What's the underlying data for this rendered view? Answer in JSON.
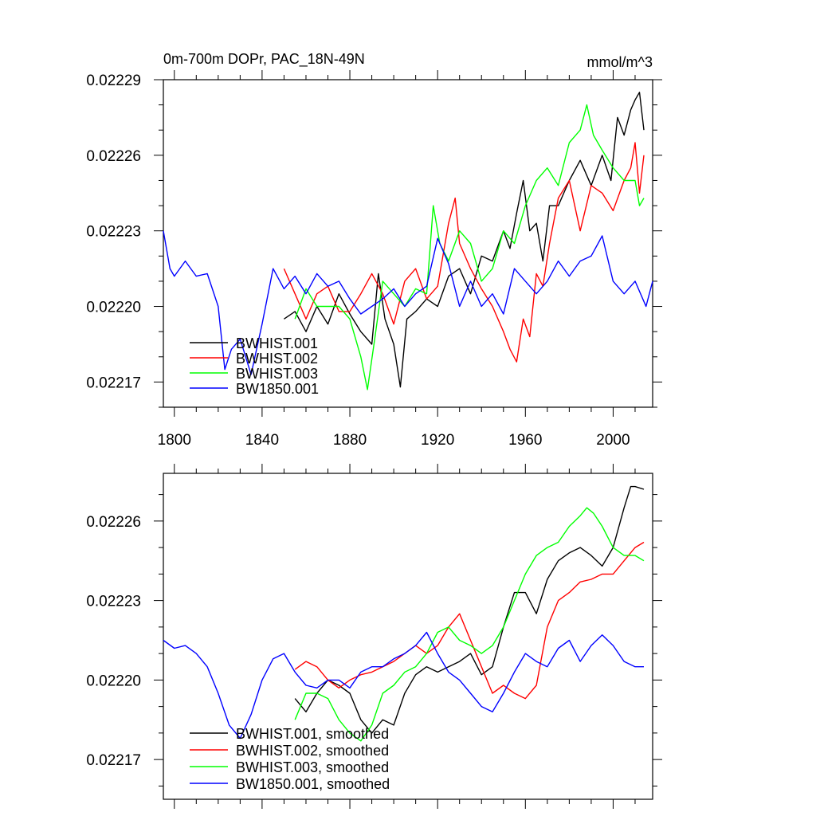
{
  "chart_data": [
    {
      "type": "line",
      "title": "0m-700m DOPr, PAC_18N-49N",
      "units": "mmol/m^3",
      "xlabel": "",
      "ylabel": "",
      "xlim": [
        1795,
        2018
      ],
      "ylim": [
        0.02216,
        0.02229
      ],
      "xticks": [
        1800,
        1840,
        1880,
        1920,
        1960,
        2000
      ],
      "xtick_labels": [
        "1800",
        "1840",
        "1880",
        "1920",
        "1960",
        "2000"
      ],
      "yticks": [
        0.02217,
        0.0222,
        0.02223,
        0.02226,
        0.02229
      ],
      "ytick_labels": [
        "0.02217",
        "0.02220",
        "0.02223",
        "0.02226",
        "0.02229"
      ],
      "legend_position": "bottom-left",
      "series": [
        {
          "name": "BWHIST.001",
          "color": "#000000",
          "x": [
            1850,
            1855,
            1860,
            1865,
            1870,
            1875,
            1880,
            1885,
            1890,
            1893,
            1896,
            1900,
            1903,
            1906,
            1910,
            1915,
            1920,
            1925,
            1930,
            1935,
            1940,
            1945,
            1950,
            1953,
            1956,
            1959,
            1962,
            1965,
            1968,
            1971,
            1975,
            1980,
            1985,
            1990,
            1995,
            1999,
            2002,
            2005,
            2008,
            2010,
            2012,
            2014
          ],
          "y": [
            0.022195,
            0.022198,
            0.02219,
            0.0222,
            0.022193,
            0.022205,
            0.022197,
            0.02219,
            0.022185,
            0.022213,
            0.022195,
            0.022185,
            0.022168,
            0.022195,
            0.022198,
            0.022203,
            0.0222,
            0.022212,
            0.022215,
            0.022205,
            0.02222,
            0.022218,
            0.02223,
            0.022223,
            0.022237,
            0.02225,
            0.02223,
            0.022233,
            0.022218,
            0.02224,
            0.02224,
            0.02225,
            0.022258,
            0.022248,
            0.02226,
            0.02225,
            0.022275,
            0.022268,
            0.022278,
            0.022282,
            0.022285,
            0.02227
          ]
        },
        {
          "name": "BWHIST.002",
          "color": "#ff0000",
          "x": [
            1850,
            1855,
            1860,
            1865,
            1870,
            1875,
            1880,
            1885,
            1890,
            1895,
            1900,
            1905,
            1910,
            1915,
            1920,
            1925,
            1928,
            1930,
            1935,
            1940,
            1945,
            1950,
            1953,
            1956,
            1959,
            1962,
            1965,
            1968,
            1971,
            1975,
            1980,
            1985,
            1990,
            1995,
            2000,
            2005,
            2008,
            2010,
            2012,
            2014
          ],
          "y": [
            0.022215,
            0.022205,
            0.022195,
            0.022205,
            0.022208,
            0.022198,
            0.022198,
            0.022205,
            0.022213,
            0.022205,
            0.022193,
            0.02221,
            0.022215,
            0.022203,
            0.022208,
            0.022233,
            0.022243,
            0.022225,
            0.022215,
            0.022207,
            0.0222,
            0.02219,
            0.022183,
            0.022178,
            0.022195,
            0.022188,
            0.022213,
            0.022208,
            0.022225,
            0.022243,
            0.02225,
            0.02223,
            0.022248,
            0.022245,
            0.022238,
            0.02225,
            0.022255,
            0.022265,
            0.022245,
            0.02226
          ]
        },
        {
          "name": "BWHIST.003",
          "color": "#00ff00",
          "x": [
            1855,
            1860,
            1865,
            1870,
            1875,
            1880,
            1885,
            1888,
            1891,
            1895,
            1900,
            1905,
            1910,
            1915,
            1918,
            1921,
            1925,
            1930,
            1935,
            1940,
            1945,
            1950,
            1955,
            1960,
            1965,
            1970,
            1975,
            1980,
            1985,
            1988,
            1991,
            1995,
            2000,
            2005,
            2010,
            2012,
            2014
          ],
          "y": [
            0.022195,
            0.022207,
            0.0222,
            0.0222,
            0.0222,
            0.022195,
            0.02218,
            0.022167,
            0.022185,
            0.02221,
            0.022205,
            0.0222,
            0.022207,
            0.022205,
            0.02224,
            0.022225,
            0.022218,
            0.02223,
            0.022225,
            0.02221,
            0.022215,
            0.02223,
            0.022225,
            0.02224,
            0.02225,
            0.022255,
            0.022248,
            0.022265,
            0.02227,
            0.02228,
            0.022268,
            0.022262,
            0.022255,
            0.02225,
            0.02225,
            0.02224,
            0.022243
          ]
        },
        {
          "name": "BW1850.001",
          "color": "#0000ff",
          "x": [
            1795,
            1798,
            1800,
            1805,
            1810,
            1815,
            1820,
            1823,
            1826,
            1830,
            1835,
            1840,
            1845,
            1850,
            1855,
            1860,
            1865,
            1870,
            1875,
            1880,
            1885,
            1890,
            1895,
            1900,
            1905,
            1910,
            1915,
            1920,
            1925,
            1930,
            1935,
            1940,
            1945,
            1950,
            1955,
            1960,
            1965,
            1970,
            1975,
            1980,
            1985,
            1990,
            1995,
            2000,
            2005,
            2010,
            2015,
            2018
          ],
          "y": [
            0.02223,
            0.022215,
            0.022212,
            0.022218,
            0.022212,
            0.022213,
            0.0222,
            0.022175,
            0.022183,
            0.022187,
            0.022173,
            0.022193,
            0.022215,
            0.022207,
            0.022212,
            0.022205,
            0.022213,
            0.022208,
            0.02221,
            0.022203,
            0.022197,
            0.0222,
            0.022203,
            0.022207,
            0.0222,
            0.022205,
            0.022208,
            0.022227,
            0.022217,
            0.0222,
            0.02221,
            0.0222,
            0.022205,
            0.022197,
            0.022215,
            0.02221,
            0.022205,
            0.02221,
            0.022218,
            0.022212,
            0.022218,
            0.02222,
            0.022228,
            0.02221,
            0.022205,
            0.02221,
            0.0222,
            0.02221
          ]
        }
      ]
    },
    {
      "type": "line",
      "title": "",
      "xlabel": "",
      "ylabel": "",
      "xlim": [
        1795,
        2018
      ],
      "ylim": [
        0.022155,
        0.022278
      ],
      "xticks": [
        1800,
        1840,
        1880,
        1920,
        1960,
        2000
      ],
      "yticks": [
        0.02217,
        0.0222,
        0.02223,
        0.02226
      ],
      "ytick_labels": [
        "0.02217",
        "0.02220",
        "0.02223",
        "0.02226"
      ],
      "legend_position": "bottom-left",
      "series": [
        {
          "name": "BWHIST.001, smoothed",
          "color": "#000000",
          "x": [
            1855,
            1860,
            1865,
            1870,
            1875,
            1880,
            1885,
            1890,
            1895,
            1900,
            1905,
            1910,
            1915,
            1920,
            1925,
            1930,
            1935,
            1940,
            1945,
            1950,
            1955,
            1960,
            1965,
            1970,
            1975,
            1980,
            1985,
            1990,
            1995,
            2000,
            2005,
            2008,
            2010,
            2014
          ],
          "y": [
            0.022193,
            0.022188,
            0.022195,
            0.0222,
            0.022198,
            0.022195,
            0.022185,
            0.02218,
            0.022185,
            0.022183,
            0.022195,
            0.022202,
            0.022205,
            0.022203,
            0.022205,
            0.022207,
            0.02221,
            0.022202,
            0.022205,
            0.02222,
            0.022233,
            0.022233,
            0.022225,
            0.022238,
            0.022245,
            0.022248,
            0.02225,
            0.022247,
            0.022243,
            0.02225,
            0.022265,
            0.022273,
            0.022273,
            0.022272
          ]
        },
        {
          "name": "BWHIST.002, smoothed",
          "color": "#ff0000",
          "x": [
            1855,
            1860,
            1865,
            1870,
            1875,
            1880,
            1885,
            1890,
            1895,
            1900,
            1905,
            1910,
            1915,
            1920,
            1925,
            1930,
            1935,
            1940,
            1945,
            1950,
            1955,
            1960,
            1965,
            1970,
            1975,
            1980,
            1985,
            1990,
            1995,
            2000,
            2005,
            2010,
            2014
          ],
          "y": [
            0.022204,
            0.022207,
            0.022205,
            0.0222,
            0.022197,
            0.0222,
            0.022202,
            0.022203,
            0.022205,
            0.022207,
            0.02221,
            0.022213,
            0.02221,
            0.022213,
            0.02222,
            0.022225,
            0.022215,
            0.022205,
            0.022195,
            0.022198,
            0.022195,
            0.022193,
            0.022198,
            0.02222,
            0.02223,
            0.022233,
            0.022237,
            0.022238,
            0.02224,
            0.02224,
            0.022245,
            0.02225,
            0.022252
          ]
        },
        {
          "name": "BWHIST.003, smoothed",
          "color": "#00ff00",
          "x": [
            1855,
            1860,
            1865,
            1870,
            1875,
            1880,
            1885,
            1890,
            1895,
            1900,
            1905,
            1910,
            1915,
            1920,
            1925,
            1930,
            1935,
            1940,
            1945,
            1950,
            1955,
            1960,
            1965,
            1970,
            1975,
            1980,
            1985,
            1988,
            1991,
            1995,
            2000,
            2005,
            2010,
            2014
          ],
          "y": [
            0.022185,
            0.022195,
            0.022195,
            0.022193,
            0.022185,
            0.02218,
            0.022177,
            0.022183,
            0.022195,
            0.022198,
            0.022203,
            0.022205,
            0.02221,
            0.022218,
            0.02222,
            0.022215,
            0.022213,
            0.02221,
            0.022213,
            0.02222,
            0.02223,
            0.02224,
            0.022247,
            0.02225,
            0.022252,
            0.022258,
            0.022262,
            0.022265,
            0.022263,
            0.022258,
            0.02225,
            0.022247,
            0.022247,
            0.022245
          ]
        },
        {
          "name": "BW1850.001, smoothed",
          "color": "#0000ff",
          "x": [
            1795,
            1800,
            1805,
            1810,
            1815,
            1820,
            1825,
            1830,
            1835,
            1840,
            1845,
            1850,
            1855,
            1860,
            1865,
            1870,
            1875,
            1880,
            1885,
            1890,
            1895,
            1900,
            1905,
            1910,
            1915,
            1920,
            1925,
            1930,
            1935,
            1940,
            1945,
            1950,
            1955,
            1960,
            1965,
            1970,
            1975,
            1980,
            1985,
            1990,
            1995,
            2000,
            2005,
            2010,
            2014
          ],
          "y": [
            0.022215,
            0.022212,
            0.022213,
            0.02221,
            0.022205,
            0.022195,
            0.022183,
            0.022178,
            0.022187,
            0.0222,
            0.022208,
            0.02221,
            0.022203,
            0.022198,
            0.022197,
            0.0222,
            0.0222,
            0.022197,
            0.022203,
            0.022205,
            0.022205,
            0.022208,
            0.02221,
            0.022213,
            0.022218,
            0.02221,
            0.022203,
            0.0222,
            0.022195,
            0.02219,
            0.022188,
            0.022195,
            0.022203,
            0.02221,
            0.022207,
            0.022205,
            0.022212,
            0.022215,
            0.022207,
            0.022213,
            0.022217,
            0.022213,
            0.022207,
            0.022205,
            0.022205
          ]
        }
      ]
    }
  ]
}
